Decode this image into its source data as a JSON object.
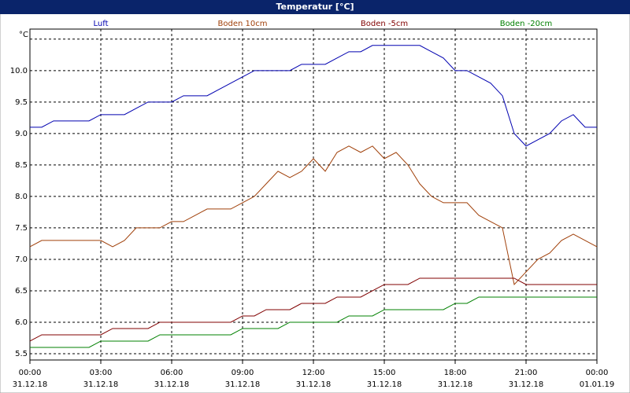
{
  "chart_data": {
    "type": "line",
    "title": "Temperatur [°C]",
    "y_label": "°C",
    "x": [
      0,
      0.5,
      1,
      1.5,
      2,
      2.5,
      3,
      3.5,
      4,
      4.5,
      5,
      5.5,
      6,
      6.5,
      7,
      7.5,
      8,
      8.5,
      9,
      9.5,
      10,
      10.5,
      11,
      11.5,
      12,
      12.5,
      13,
      13.5,
      14,
      14.5,
      15,
      15.5,
      16,
      16.5,
      17,
      17.5,
      18,
      18.5,
      19,
      19.5,
      20,
      20.5,
      21,
      21.5,
      22,
      22.5,
      23,
      23.5,
      24
    ],
    "series": [
      {
        "name": "Luft",
        "color": "#0000b0",
        "values": [
          9.1,
          9.1,
          9.2,
          9.2,
          9.2,
          9.2,
          9.3,
          9.3,
          9.3,
          9.4,
          9.5,
          9.5,
          9.5,
          9.6,
          9.6,
          9.6,
          9.7,
          9.8,
          9.9,
          10.0,
          10.0,
          10.0,
          10.0,
          10.1,
          10.1,
          10.1,
          10.2,
          10.3,
          10.3,
          10.4,
          10.4,
          10.4,
          10.4,
          10.4,
          10.3,
          10.2,
          10.0,
          10.0,
          9.9,
          9.8,
          9.6,
          9.0,
          8.8,
          8.9,
          9.0,
          9.2,
          9.3,
          9.1,
          9.1
        ]
      },
      {
        "name": "Boden 10cm",
        "color": "#a0400a",
        "values": [
          7.2,
          7.3,
          7.3,
          7.3,
          7.3,
          7.3,
          7.3,
          7.2,
          7.3,
          7.5,
          7.5,
          7.5,
          7.6,
          7.6,
          7.7,
          7.8,
          7.8,
          7.8,
          7.9,
          8.0,
          8.2,
          8.4,
          8.3,
          8.4,
          8.6,
          8.4,
          8.7,
          8.8,
          8.7,
          8.8,
          8.6,
          8.7,
          8.5,
          8.2,
          8.0,
          7.9,
          7.9,
          7.9,
          7.7,
          7.6,
          7.5,
          6.6,
          6.8,
          7.0,
          7.1,
          7.3,
          7.4,
          7.3,
          7.2
        ]
      },
      {
        "name": "Boden -5cm",
        "color": "#800000",
        "values": [
          5.7,
          5.8,
          5.8,
          5.8,
          5.8,
          5.8,
          5.8,
          5.9,
          5.9,
          5.9,
          5.9,
          6.0,
          6.0,
          6.0,
          6.0,
          6.0,
          6.0,
          6.0,
          6.1,
          6.1,
          6.2,
          6.2,
          6.2,
          6.3,
          6.3,
          6.3,
          6.4,
          6.4,
          6.4,
          6.5,
          6.6,
          6.6,
          6.6,
          6.7,
          6.7,
          6.7,
          6.7,
          6.7,
          6.7,
          6.7,
          6.7,
          6.7,
          6.6,
          6.6,
          6.6,
          6.6,
          6.6,
          6.6,
          6.6
        ]
      },
      {
        "name": "Boden -20cm",
        "color": "#008000",
        "values": [
          5.6,
          5.6,
          5.6,
          5.6,
          5.6,
          5.6,
          5.7,
          5.7,
          5.7,
          5.7,
          5.7,
          5.8,
          5.8,
          5.8,
          5.8,
          5.8,
          5.8,
          5.8,
          5.9,
          5.9,
          5.9,
          5.9,
          6.0,
          6.0,
          6.0,
          6.0,
          6.0,
          6.1,
          6.1,
          6.1,
          6.2,
          6.2,
          6.2,
          6.2,
          6.2,
          6.2,
          6.3,
          6.3,
          6.4,
          6.4,
          6.4,
          6.4,
          6.4,
          6.4,
          6.4,
          6.4,
          6.4,
          6.4,
          6.4
        ]
      }
    ],
    "xlim": [
      0,
      24
    ],
    "xticks": [
      {
        "value": 0,
        "label": "00:00",
        "date": "31.12.18"
      },
      {
        "value": 3,
        "label": "03:00",
        "date": "31.12.18"
      },
      {
        "value": 6,
        "label": "06:00",
        "date": "31.12.18"
      },
      {
        "value": 9,
        "label": "09:00",
        "date": "31.12.18"
      },
      {
        "value": 12,
        "label": "12:00",
        "date": "31.12.18"
      },
      {
        "value": 15,
        "label": "15:00",
        "date": "31.12.18"
      },
      {
        "value": 18,
        "label": "18:00",
        "date": "31.12.18"
      },
      {
        "value": 21,
        "label": "21:00",
        "date": "31.12.18"
      },
      {
        "value": 24,
        "label": "00:00",
        "date": "01.01.19"
      }
    ],
    "ylim": [
      5.4,
      10.66
    ],
    "yticks": [
      {
        "value": 5.5,
        "label": "5.5"
      },
      {
        "value": 6,
        "label": "6.0"
      },
      {
        "value": 6.5,
        "label": "6.5"
      },
      {
        "value": 7,
        "label": "7.0"
      },
      {
        "value": 7.5,
        "label": "7.5"
      },
      {
        "value": 8,
        "label": "8.0"
      },
      {
        "value": 8.5,
        "label": "8.5"
      },
      {
        "value": 9,
        "label": "9.0"
      },
      {
        "value": 9.5,
        "label": "9.5"
      },
      {
        "value": 10,
        "label": "10.0"
      },
      {
        "value": 10.5,
        "label": null
      }
    ],
    "grid": true
  }
}
